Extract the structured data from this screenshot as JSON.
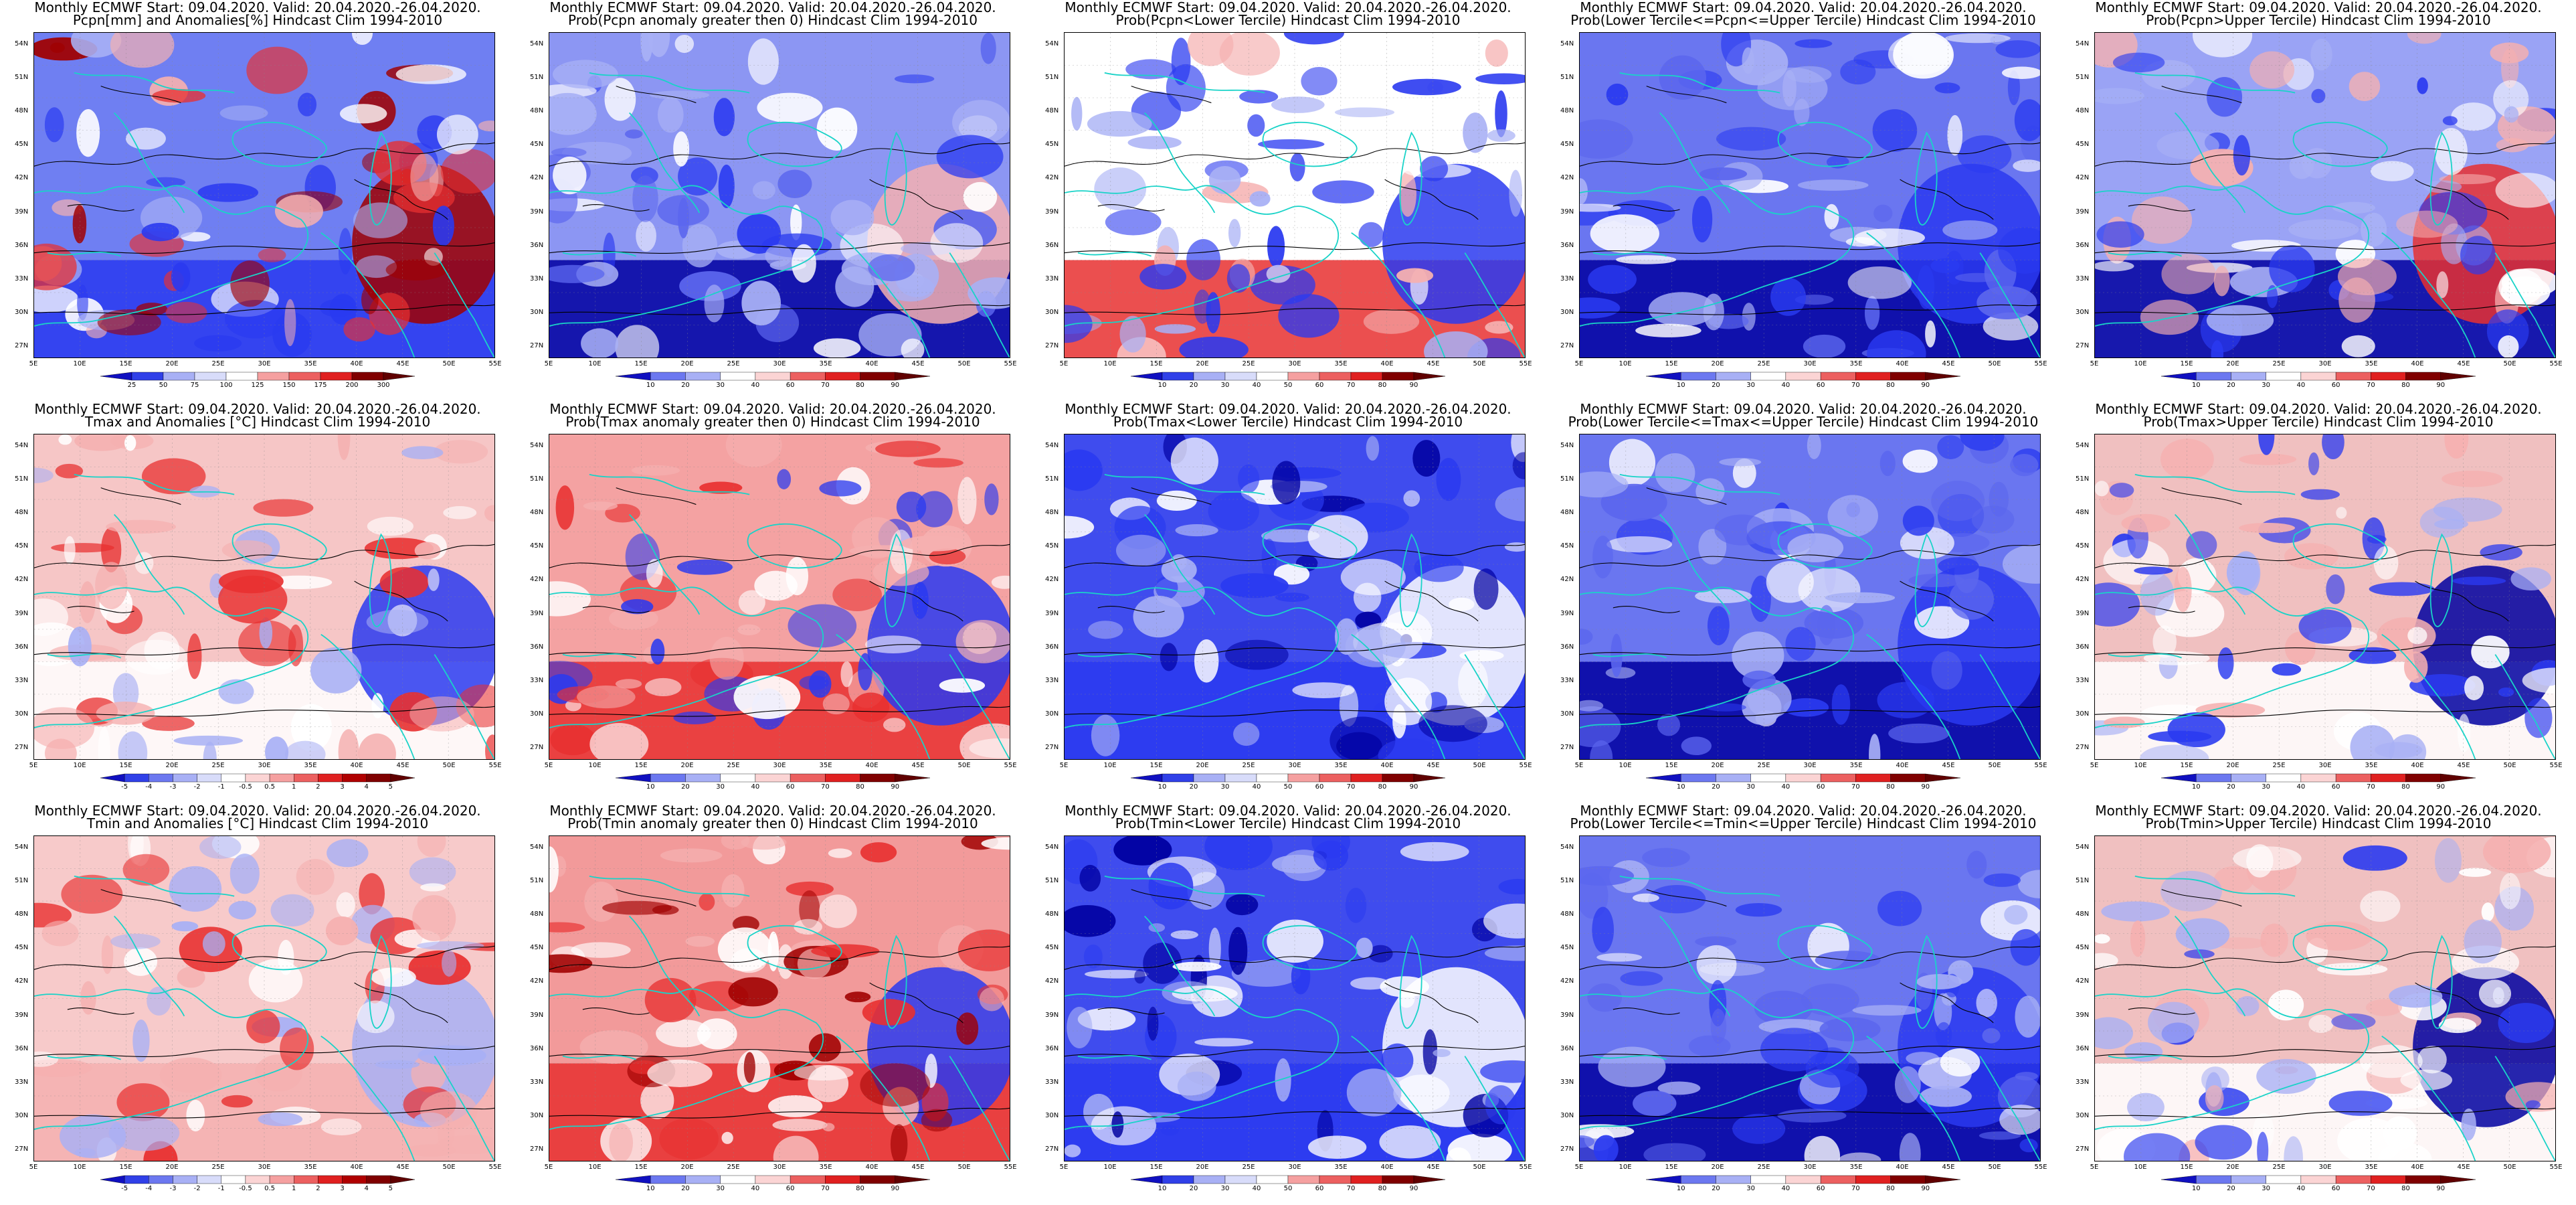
{
  "figure": {
    "background": "#ffffff",
    "colors": {
      "coast": "#19d3c8",
      "contour": "#000000",
      "deep_blue": "#0000a0",
      "blue": "#2a3af0",
      "light_blue": "#a8b0f5",
      "white": "#ffffff",
      "light_red": "#f5b0b0",
      "red": "#e83030",
      "dark_red": "#a00000"
    },
    "lat_labels": [
      "54N",
      "51N",
      "48N",
      "45N",
      "42N",
      "39N",
      "36N",
      "33N",
      "30N",
      "27N"
    ],
    "lon_labels": [
      "5E",
      "10E",
      "15E",
      "20E",
      "25E",
      "30E",
      "35E",
      "40E",
      "45E",
      "50E",
      "55E"
    ]
  },
  "panels": [
    {
      "title1": "Monthly ECMWF Start: 09.04.2020. Valid: 20.04.2020.-26.04.2020.",
      "title2": "Pcpn[mm] and Anomalies[%] Hindcast Clim 1994-2010",
      "colorbar": [
        "25",
        "50",
        "75",
        "100",
        "125",
        "150",
        "175",
        "200",
        "300"
      ],
      "scheme": "anom_pcpn"
    },
    {
      "title1": "Monthly ECMWF Start: 09.04.2020. Valid: 20.04.2020.-26.04.2020.",
      "title2": "Prob(Pcpn anomaly greater then 0) Hindcast Clim 1994-2010",
      "colorbar": [
        "10",
        "20",
        "30",
        "40",
        "60",
        "70",
        "80",
        "90"
      ],
      "scheme": "prob_lowblue"
    },
    {
      "title1": "Monthly ECMWF Start: 09.04.2020. Valid: 20.04.2020.-26.04.2020.",
      "title2": "Prob(Pcpn<Lower Tercile) Hindcast Clim 1994-2010",
      "colorbar": [
        "10",
        "20",
        "30",
        "40",
        "50",
        "60",
        "70",
        "80",
        "90"
      ],
      "scheme": "prob_lower_pcpn"
    },
    {
      "title1": "Monthly ECMWF Start: 09.04.2020. Valid: 20.04.2020.-26.04.2020.",
      "title2": "Prob(Lower Tercile<=Pcpn<=Upper Tercile) Hindcast Clim 1994-2010",
      "colorbar": [
        "10",
        "20",
        "30",
        "40",
        "60",
        "70",
        "80",
        "90"
      ],
      "scheme": "prob_mid"
    },
    {
      "title1": "Monthly ECMWF Start: 09.04.2020. Valid: 20.04.2020.-26.04.2020.",
      "title2": "Prob(Pcpn>Upper Tercile) Hindcast Clim 1994-2010",
      "colorbar": [
        "10",
        "20",
        "30",
        "40",
        "60",
        "70",
        "80",
        "90"
      ],
      "scheme": "prob_upper_pcpn"
    },
    {
      "title1": "Monthly ECMWF Start: 09.04.2020. Valid: 20.04.2020.-26.04.2020.",
      "title2": "Tmax and Anomalies [°C] Hindcast Clim 1994-2010",
      "colorbar": [
        "-5",
        "-4",
        "-3",
        "-2",
        "-1",
        "-0.5",
        "0.5",
        "1",
        "2",
        "3",
        "4",
        "5"
      ],
      "scheme": "anom_tmax"
    },
    {
      "title1": "Monthly ECMWF Start: 09.04.2020. Valid: 20.04.2020.-26.04.2020.",
      "title2": "Prob(Tmax anomaly greater then 0) Hindcast Clim 1994-2010",
      "colorbar": [
        "10",
        "20",
        "30",
        "40",
        "60",
        "70",
        "80",
        "90"
      ],
      "scheme": "prob_tmax"
    },
    {
      "title1": "Monthly ECMWF Start: 09.04.2020. Valid: 20.04.2020.-26.04.2020.",
      "title2": "Prob(Tmax<Lower Tercile) Hindcast Clim 1994-2010",
      "colorbar": [
        "10",
        "20",
        "30",
        "40",
        "50",
        "60",
        "70",
        "80",
        "90"
      ],
      "scheme": "prob_lower_t"
    },
    {
      "title1": "Monthly ECMWF Start: 09.04.2020. Valid: 20.04.2020.-26.04.2020.",
      "title2": "Prob(Lower Tercile<=Tmax<=Upper Tercile) Hindcast Clim 1994-2010",
      "colorbar": [
        "10",
        "20",
        "30",
        "40",
        "60",
        "70",
        "80",
        "90"
      ],
      "scheme": "prob_mid"
    },
    {
      "title1": "Monthly ECMWF Start: 09.04.2020. Valid: 20.04.2020.-26.04.2020.",
      "title2": "Prob(Tmax>Upper Tercile) Hindcast Clim 1994-2010",
      "colorbar": [
        "10",
        "20",
        "30",
        "40",
        "60",
        "70",
        "80",
        "90"
      ],
      "scheme": "prob_upper_t"
    },
    {
      "title1": "Monthly ECMWF Start: 09.04.2020. Valid: 20.04.2020.-26.04.2020.",
      "title2": "Tmin and Anomalies [°C] Hindcast Clim 1994-2010",
      "colorbar": [
        "-5",
        "-4",
        "-3",
        "-2",
        "-1",
        "-0.5",
        "0.5",
        "1",
        "2",
        "3",
        "4",
        "5"
      ],
      "scheme": "anom_tmin"
    },
    {
      "title1": "Monthly ECMWF Start: 09.04.2020. Valid: 20.04.2020.-26.04.2020.",
      "title2": "Prob(Tmin anomaly greater then 0) Hindcast Clim 1994-2010",
      "colorbar": [
        "10",
        "20",
        "30",
        "40",
        "60",
        "70",
        "80",
        "90"
      ],
      "scheme": "prob_tmin"
    },
    {
      "title1": "Monthly ECMWF Start: 09.04.2020. Valid: 20.04.2020.-26.04.2020.",
      "title2": "Prob(Tmin<Lower Tercile) Hindcast Clim 1994-2010",
      "colorbar": [
        "10",
        "20",
        "30",
        "40",
        "50",
        "60",
        "70",
        "80",
        "90"
      ],
      "scheme": "prob_lower_t"
    },
    {
      "title1": "Monthly ECMWF Start: 09.04.2020. Valid: 20.04.2020.-26.04.2020.",
      "title2": "Prob(Lower Tercile<=Tmin<=Upper Tercile) Hindcast Clim 1994-2010",
      "colorbar": [
        "10",
        "20",
        "30",
        "40",
        "60",
        "70",
        "80",
        "90"
      ],
      "scheme": "prob_mid"
    },
    {
      "title1": "Monthly ECMWF Start: 09.04.2020. Valid: 20.04.2020.-26.04.2020.",
      "title2": "Prob(Tmin>Upper Tercile) Hindcast Clim 1994-2010",
      "colorbar": [
        "10",
        "20",
        "30",
        "40",
        "60",
        "70",
        "80",
        "90"
      ],
      "scheme": "prob_upper_t"
    }
  ]
}
